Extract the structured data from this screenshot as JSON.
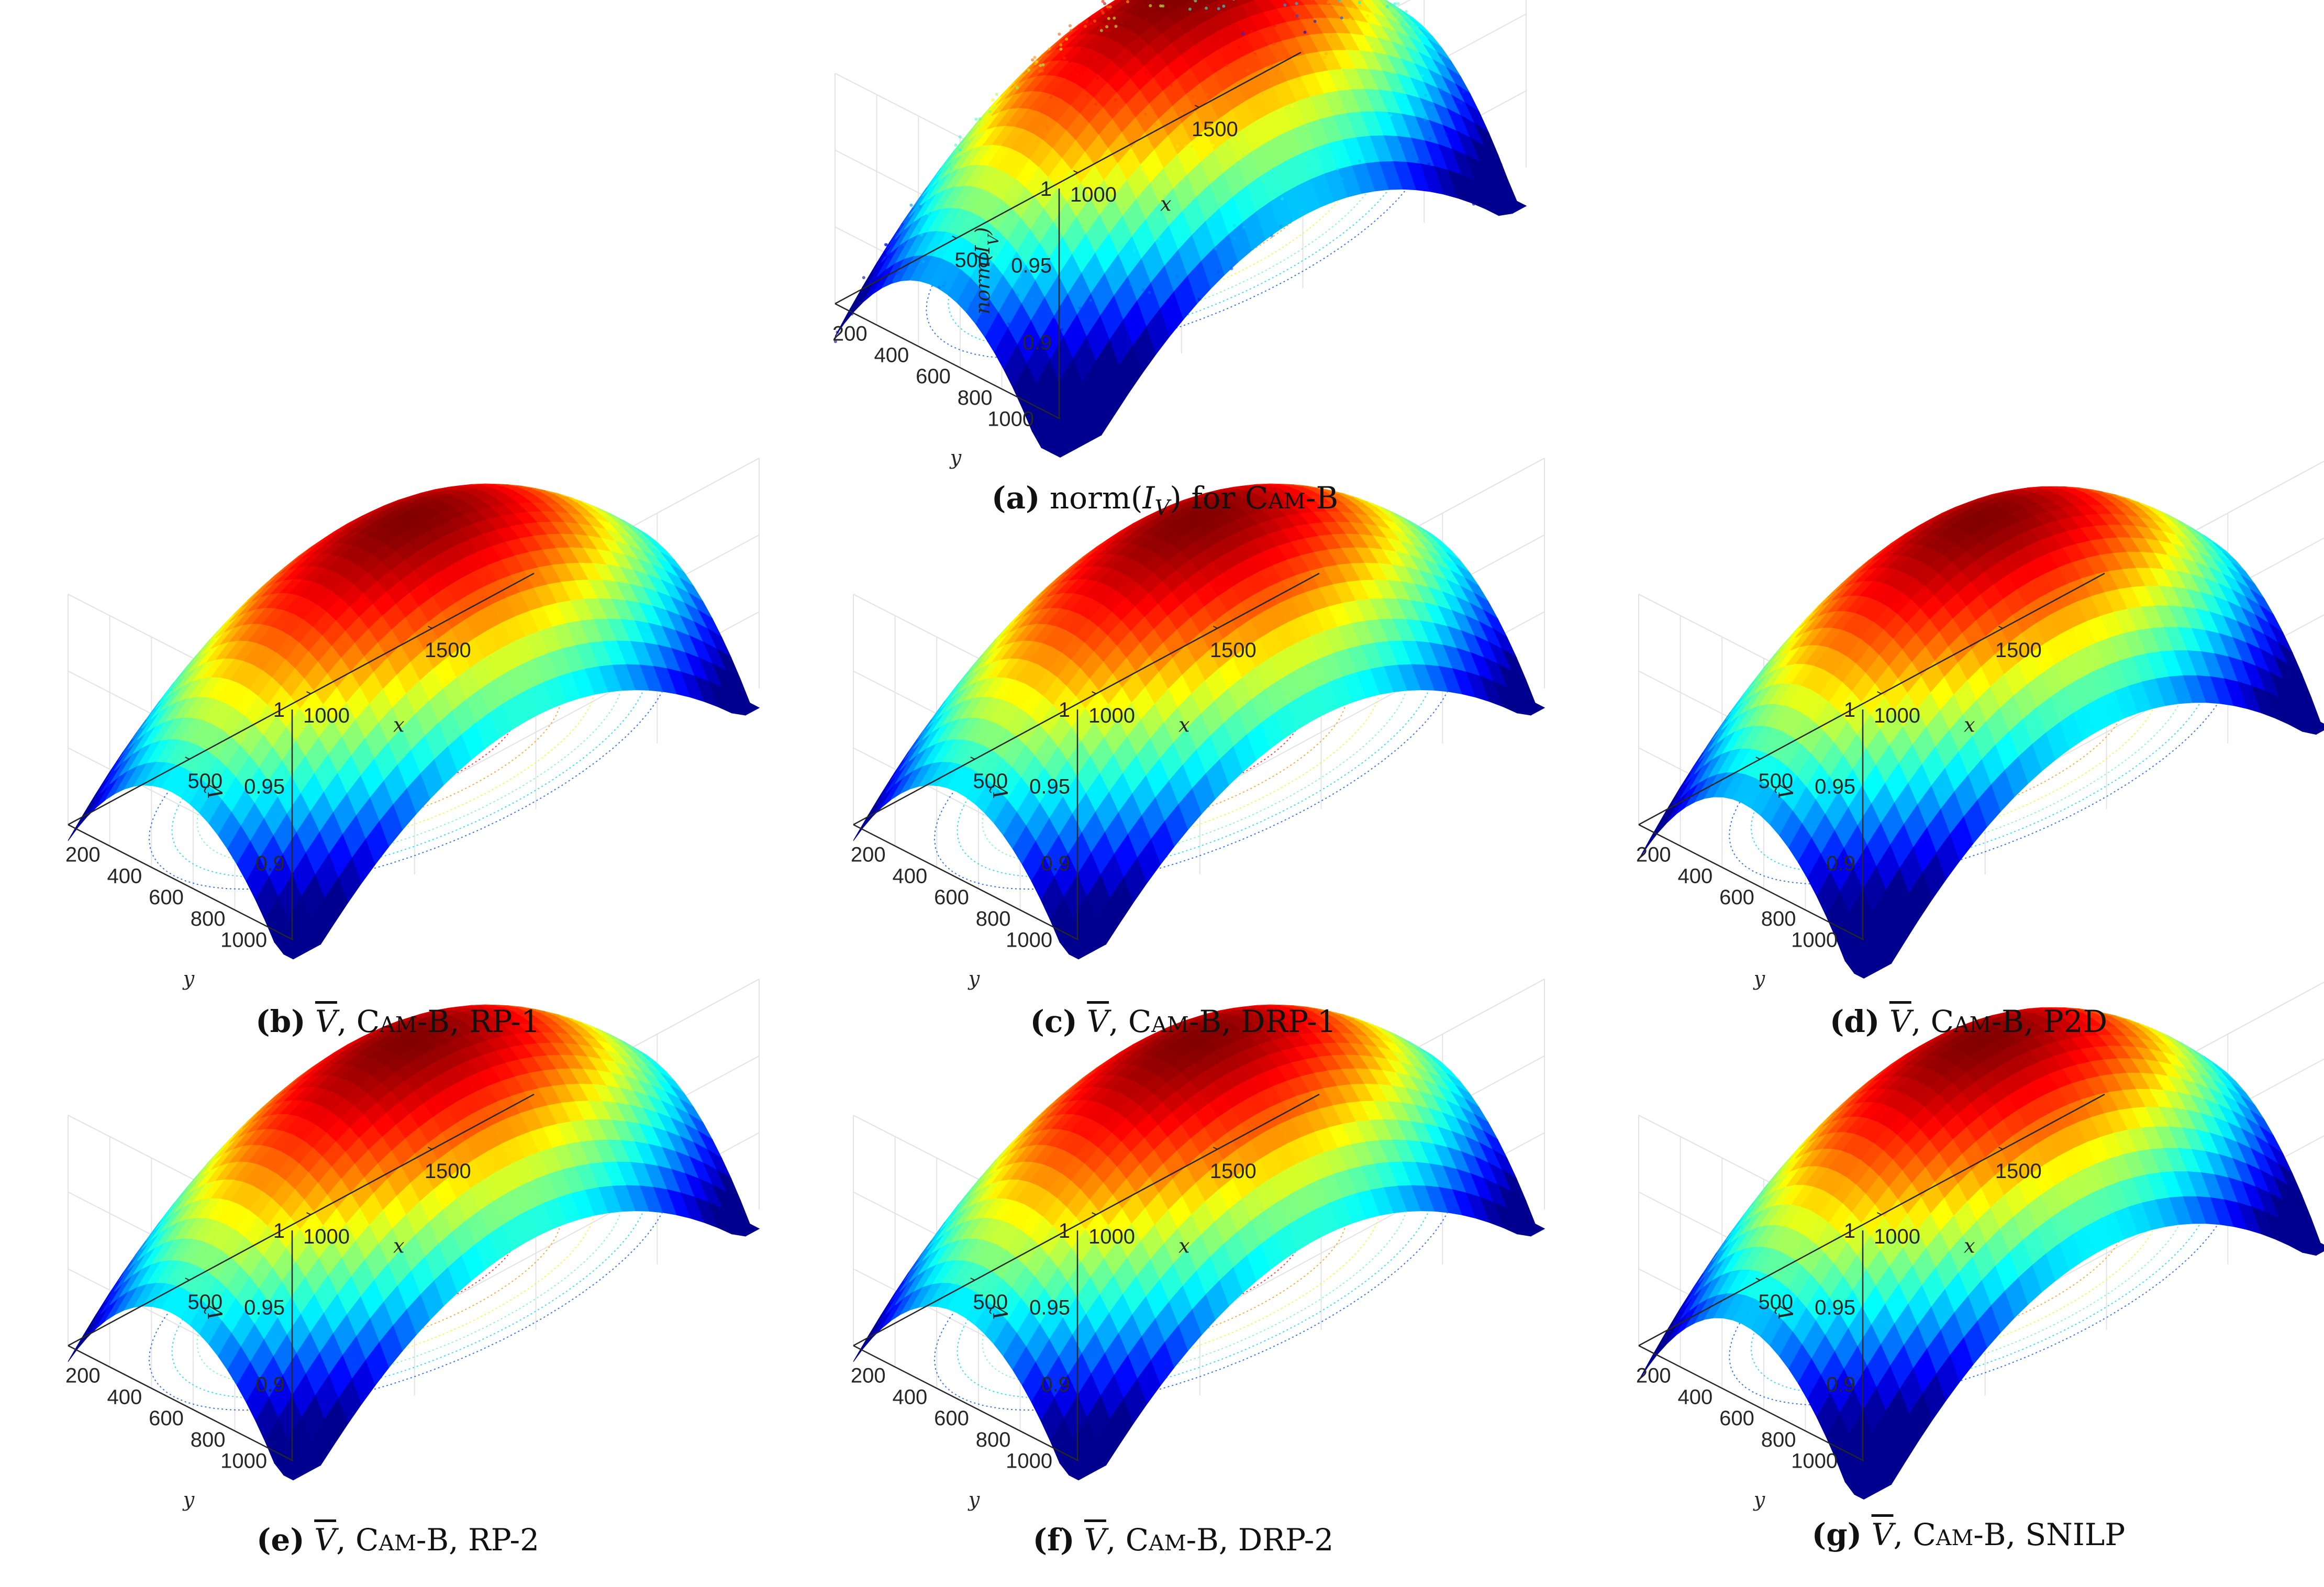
{
  "colors": {
    "colormap": [
      "#00008f",
      "#0000ff",
      "#0080ff",
      "#00ffff",
      "#80ff80",
      "#ffff00",
      "#ff8000",
      "#ff0000",
      "#800000"
    ],
    "axis_line": "#262626",
    "grid": "#e3e3e3"
  },
  "chart_data": [
    {
      "id": "a",
      "type": "surface3d",
      "noisy": true,
      "title": "norm(I_V) for Cam-B",
      "caption": {
        "label": "(a)",
        "parts": [
          "norm(",
          "I",
          "V",
          ") for ",
          "Cam-B"
        ]
      },
      "zlabel": "norm(I_V)",
      "xlabel": "x",
      "ylabel": "y",
      "xticks": [
        500,
        1000,
        1500
      ],
      "yticks": [
        200,
        400,
        600,
        800,
        1000
      ],
      "zticks": [
        0.9,
        0.95,
        1
      ],
      "xlim": [
        0,
        1920
      ],
      "ylim": [
        0,
        1080
      ],
      "zlim": [
        0.85,
        1
      ],
      "surface": {
        "peak": 1.0,
        "min_corner": 0.86,
        "center_x": 1000,
        "center_y": 480
      }
    },
    {
      "id": "b",
      "type": "surface3d",
      "title": "V~, Cam-B, RP-1",
      "caption": {
        "label": "(b)",
        "parts": [
          "V",
          ", ",
          "Cam-B",
          ", RP-1"
        ]
      },
      "zlabel": "V~",
      "xlabel": "x",
      "ylabel": "y",
      "xticks": [
        500,
        1000,
        1500
      ],
      "yticks": [
        200,
        400,
        600,
        800,
        1000
      ],
      "zticks": [
        0.9,
        0.95,
        1
      ],
      "xlim": [
        0,
        1920
      ],
      "ylim": [
        0,
        1080
      ],
      "zlim": [
        0.85,
        1
      ],
      "surface": {
        "peak": 1.0,
        "min_corner": 0.87,
        "center_x": 980,
        "center_y": 500
      }
    },
    {
      "id": "c",
      "type": "surface3d",
      "title": "V~, Cam-B, DRP-1",
      "caption": {
        "label": "(c)",
        "parts": [
          "V",
          ", ",
          "Cam-B",
          ", DRP-1"
        ]
      },
      "zlabel": "V~",
      "xlabel": "x",
      "ylabel": "y",
      "xticks": [
        500,
        1000,
        1500
      ],
      "yticks": [
        200,
        400,
        600,
        800,
        1000
      ],
      "zticks": [
        0.9,
        0.95,
        1
      ],
      "xlim": [
        0,
        1920
      ],
      "ylim": [
        0,
        1080
      ],
      "zlim": [
        0.85,
        1
      ],
      "surface": {
        "peak": 1.0,
        "min_corner": 0.87,
        "center_x": 980,
        "center_y": 500
      }
    },
    {
      "id": "d",
      "type": "surface3d",
      "title": "V~, Cam-B, P2D",
      "caption": {
        "label": "(d)",
        "parts": [
          "V",
          ", ",
          "Cam-B",
          ", P2D"
        ]
      },
      "zlabel": "V~",
      "xlabel": "x",
      "ylabel": "y",
      "xticks": [
        500,
        1000,
        1500
      ],
      "yticks": [
        200,
        400,
        600,
        800,
        1000
      ],
      "zticks": [
        0.9,
        0.95,
        1
      ],
      "xlim": [
        0,
        1920
      ],
      "ylim": [
        0,
        1080
      ],
      "zlim": [
        0.85,
        1
      ],
      "surface": {
        "peak": 1.0,
        "min_corner": 0.86,
        "center_x": 980,
        "center_y": 500
      }
    },
    {
      "id": "e",
      "type": "surface3d",
      "title": "V~, Cam-B, RP-2",
      "caption": {
        "label": "(e)",
        "parts": [
          "V",
          ", ",
          "Cam-B",
          ", RP-2"
        ]
      },
      "zlabel": "V~",
      "xlabel": "x",
      "ylabel": "y",
      "xticks": [
        500,
        1000,
        1500
      ],
      "yticks": [
        200,
        400,
        600,
        800,
        1000
      ],
      "zticks": [
        0.9,
        0.95,
        1
      ],
      "xlim": [
        0,
        1920
      ],
      "ylim": [
        0,
        1080
      ],
      "zlim": [
        0.85,
        1
      ],
      "surface": {
        "peak": 1.0,
        "min_corner": 0.87,
        "center_x": 980,
        "center_y": 500
      }
    },
    {
      "id": "f",
      "type": "surface3d",
      "title": "V~, Cam-B, DRP-2",
      "caption": {
        "label": "(f)",
        "parts": [
          "V",
          ", ",
          "Cam-B",
          ", DRP-2"
        ]
      },
      "zlabel": "V~",
      "xlabel": "x",
      "ylabel": "y",
      "xticks": [
        500,
        1000,
        1500
      ],
      "yticks": [
        200,
        400,
        600,
        800,
        1000
      ],
      "zticks": [
        0.9,
        0.95,
        1
      ],
      "xlim": [
        0,
        1920
      ],
      "ylim": [
        0,
        1080
      ],
      "zlim": [
        0.85,
        1
      ],
      "surface": {
        "peak": 1.0,
        "min_corner": 0.87,
        "center_x": 980,
        "center_y": 500
      }
    },
    {
      "id": "g",
      "type": "surface3d",
      "title": "V~, Cam-B, SNILP",
      "caption": {
        "label": "(g)",
        "parts": [
          "V",
          ", ",
          "Cam-B",
          ", SNILP"
        ]
      },
      "zlabel": "V~",
      "xlabel": "x",
      "ylabel": "y",
      "xticks": [
        500,
        1000,
        1500
      ],
      "yticks": [
        200,
        400,
        600,
        800,
        1000
      ],
      "zticks": [
        0.9,
        0.95,
        1
      ],
      "xlim": [
        0,
        1920
      ],
      "ylim": [
        0,
        1080
      ],
      "zlim": [
        0.85,
        1
      ],
      "surface": {
        "peak": 1.0,
        "min_corner": 0.86,
        "center_x": 980,
        "center_y": 500
      }
    }
  ]
}
